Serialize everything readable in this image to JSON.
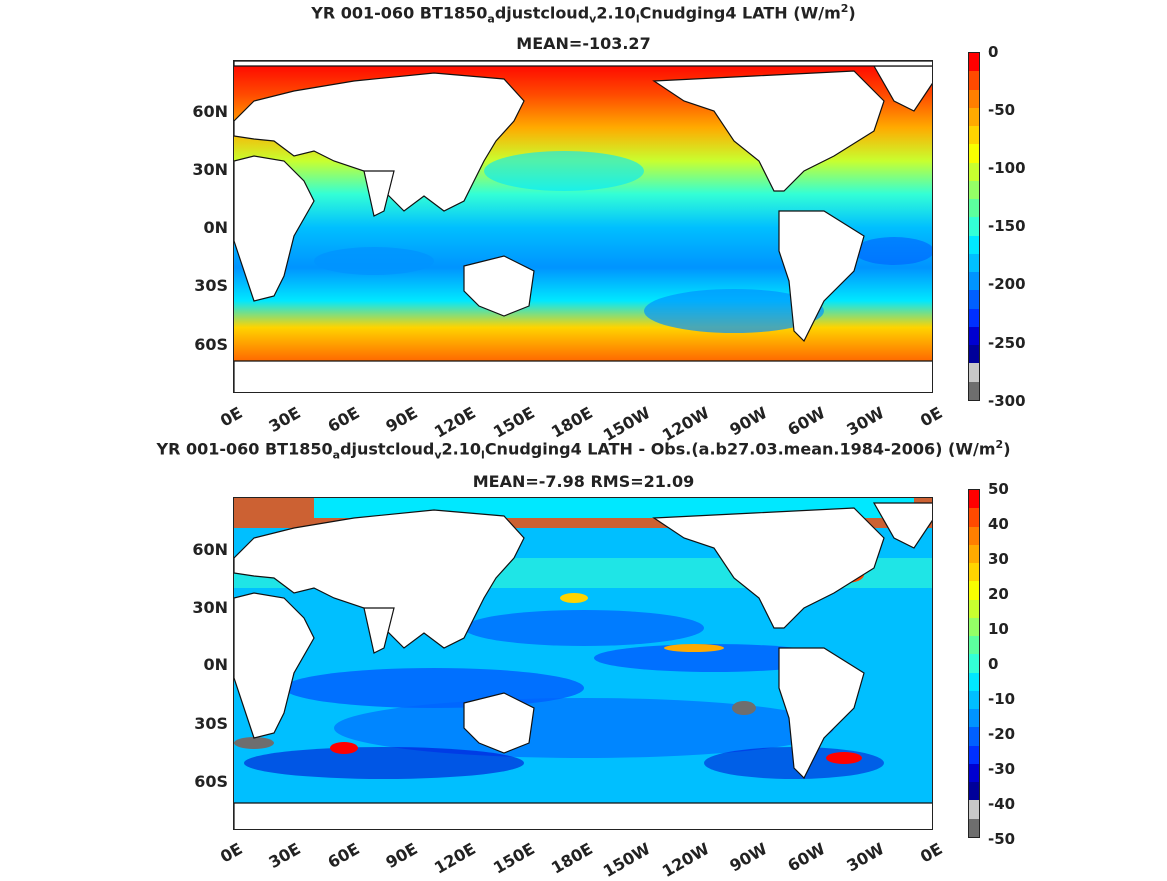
{
  "panels": [
    {
      "title_line1_parts": [
        "YR 001-060 BT1850",
        "a",
        "djustcloud",
        "v",
        "2.10",
        "l",
        "Cnudging4  LATH (W/m",
        "2",
        ")"
      ],
      "title_line2": "MEAN=-103.27",
      "y_ticks": [
        "60N",
        "30N",
        "0N",
        "30S",
        "60S"
      ],
      "x_ticks": [
        "0E",
        "30E",
        "60E",
        "90E",
        "120E",
        "150E",
        "180E",
        "150W",
        "120W",
        "90W",
        "60W",
        "30W",
        "0E"
      ],
      "colorbar_ticks": [
        "0",
        "-50",
        "-100",
        "-150",
        "-200",
        "-250",
        "-300"
      ],
      "colorbar_colors": [
        "#ff0000",
        "#ff4a00",
        "#ff7f00",
        "#ffaa00",
        "#ffd400",
        "#f8ff00",
        "#c8ff2f",
        "#94ff66",
        "#5cff9e",
        "#33ffd6",
        "#00e8ff",
        "#00bfff",
        "#0094ff",
        "#0060ff",
        "#0030ff",
        "#0000d0",
        "#00009a",
        "#c8c8c8",
        "#6e6e6e"
      ]
    },
    {
      "title_line1_parts": [
        "YR 001-060 BT1850",
        "a",
        "djustcloud",
        "v",
        "2.10",
        "l",
        "Cnudging4 LATH - Obs.(a.b27.03.mean.1984-2006) (W/m",
        "2",
        ")"
      ],
      "title_line2": "MEAN=-7.98 RMS=21.09",
      "y_ticks": [
        "60N",
        "30N",
        "0N",
        "30S",
        "60S"
      ],
      "x_ticks": [
        "0E",
        "30E",
        "60E",
        "90E",
        "120E",
        "150E",
        "180E",
        "150W",
        "120W",
        "90W",
        "60W",
        "30W",
        "0E"
      ],
      "colorbar_ticks": [
        "50",
        "40",
        "30",
        "20",
        "10",
        "0",
        "-10",
        "-20",
        "-30",
        "-40",
        "-50"
      ],
      "colorbar_colors": [
        "#ff0000",
        "#ff4a00",
        "#ff7f00",
        "#ffaa00",
        "#ffd400",
        "#f8ff00",
        "#c8ff2f",
        "#94ff66",
        "#5cff9e",
        "#33ffd6",
        "#00e8ff",
        "#00bfff",
        "#0094ff",
        "#0060ff",
        "#0030ff",
        "#0000d0",
        "#00009a",
        "#c8c8c8",
        "#6e6e6e"
      ]
    }
  ]
}
